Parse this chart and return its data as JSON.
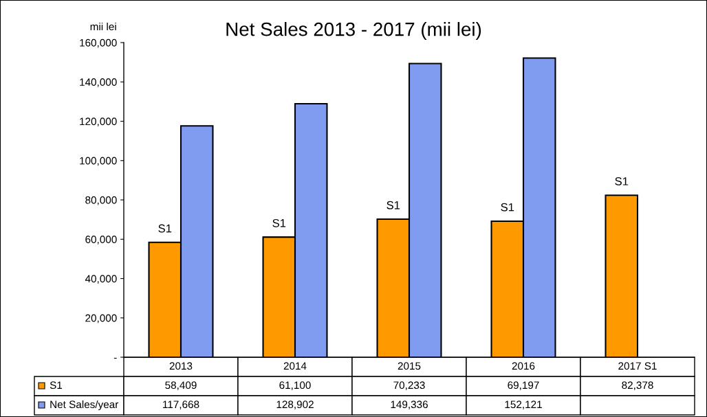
{
  "chart_data": {
    "type": "bar",
    "title": "Net Sales 2013 - 2017 (mii lei)",
    "ylabel": "mii lei",
    "categories": [
      "2013",
      "2014",
      "2015",
      "2016",
      "2017 S1"
    ],
    "series": [
      {
        "name": "S1",
        "color": "#ff9900",
        "values": [
          58409,
          61100,
          70233,
          69197,
          82378
        ],
        "value_labels": [
          "58,409",
          "61,100",
          "70,233",
          "69,197",
          "82,378"
        ]
      },
      {
        "name": "Net Sales/year",
        "color": "#7f9cf0",
        "values": [
          117668,
          128902,
          149336,
          152121,
          null
        ],
        "value_labels": [
          "117,668",
          "128,902",
          "149,336",
          "152,121",
          null
        ]
      }
    ],
    "ylim": [
      0,
      160000
    ],
    "yticks": [
      {
        "value": 0,
        "label": "-"
      },
      {
        "value": 20000,
        "label": "20,000"
      },
      {
        "value": 40000,
        "label": "40,000"
      },
      {
        "value": 60000,
        "label": "60,000"
      },
      {
        "value": 80000,
        "label": "80,000"
      },
      {
        "value": 100000,
        "label": "100,000"
      },
      {
        "value": 120000,
        "label": "120,000"
      },
      {
        "value": 140000,
        "label": "140,000"
      },
      {
        "value": 160000,
        "label": "160,000"
      }
    ],
    "annotations": [
      {
        "text": "S1",
        "x": "2013",
        "y": 58409
      },
      {
        "text": "S1",
        "x": "2014",
        "y": 61100
      },
      {
        "text": "S1",
        "x": "2015",
        "y": 70233
      },
      {
        "text": "S1",
        "x": "2016",
        "y": 69197
      },
      {
        "text": "S1",
        "x": "2017 S1",
        "y": 82378
      }
    ],
    "grid": false,
    "legend": "bottom left"
  }
}
